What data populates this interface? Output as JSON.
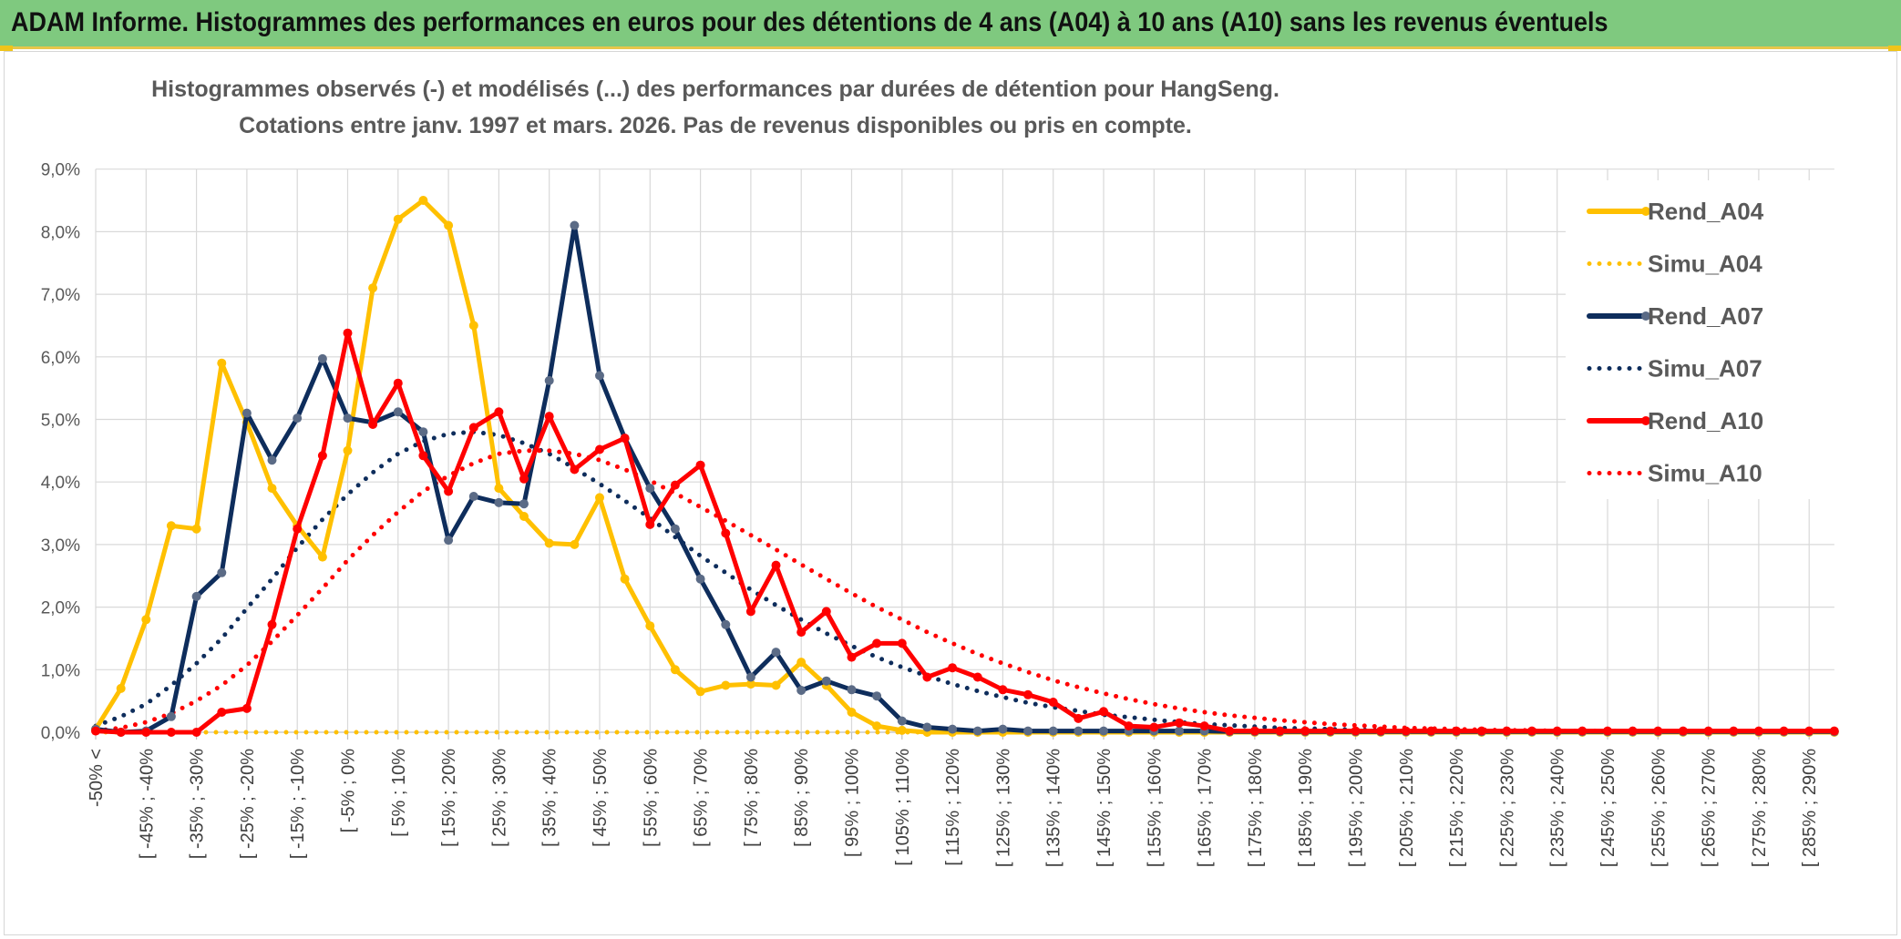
{
  "header": {
    "title": "ADAM Informe. Histogrammes des performances en euros pour des détentions de 4 ans (A04) à 10 ans (A10) sans les revenus éventuels"
  },
  "chart_data": {
    "type": "line",
    "subtitle_line1": "Histogrammes observés (-) et modélisés (...) des performances par durées de détention pour HangSeng.",
    "subtitle_line2": "Cotations entre janv. 1997 et mars. 2026. Pas de revenus disponibles ou pris en compte.",
    "yticks": [
      "0,0%",
      "1,0%",
      "2,0%",
      "3,0%",
      "4,0%",
      "5,0%",
      "6,0%",
      "7,0%",
      "8,0%",
      "9,0%"
    ],
    "ylim": [
      0,
      9
    ],
    "categories": [
      "-50% <",
      "[ -50% ; -45%",
      "[ -45% ; -40%",
      "[ -40% ; -35%",
      "[ -35% ; -30%",
      "[ -30% ; -25%",
      "[ -25% ; -20%",
      "[ -20% ; -15%",
      "[ -15% ; -10%",
      "[ -10% ; -5%",
      "[ -5% ; 0%",
      "[ 0% ; 5%",
      "[ 5% ; 10%",
      "[ 10% ; 15%",
      "[ 15% ; 20%",
      "[ 20% ; 25%",
      "[ 25% ; 30%",
      "[ 30% ; 35%",
      "[ 35% ; 40%",
      "[ 40% ; 45%",
      "[ 45% ; 50%",
      "[ 50% ; 55%",
      "[ 55% ; 60%",
      "[ 60% ; 65%",
      "[ 65% ; 70%",
      "[ 70% ; 75%",
      "[ 75% ; 80%",
      "[ 80% ; 85%",
      "[ 85% ; 90%",
      "[ 90% ; 95%",
      "[ 95% ; 100%",
      "[ 100% ; 105%",
      "[ 105% ; 110%",
      "[ 110% ; 115%",
      "[ 115% ; 120%",
      "[ 120% ; 125%",
      "[ 125% ; 130%",
      "[ 130% ; 135%",
      "[ 135% ; 140%",
      "[ 140% ; 145%",
      "[ 145% ; 150%",
      "[ 150% ; 155%",
      "[ 155% ; 160%",
      "[ 160% ; 165%",
      "[ 165% ; 170%",
      "[ 170% ; 175%",
      "[ 175% ; 180%",
      "[ 180% ; 185%",
      "[ 185% ; 190%",
      "[ 190% ; 195%",
      "[ 195% ; 200%",
      "[ 200% ; 205%",
      "[ 205% ; 210%",
      "[ 210% ; 215%",
      "[ 215% ; 220%",
      "[ 220% ; 225%",
      "[ 225% ; 230%",
      "[ 230% ; 235%",
      "[ 235% ; 240%",
      "[ 240% ; 245%",
      "[ 245% ; 250%",
      "[ 250% ; 255%",
      "[ 255% ; 260%",
      "[ 260% ; 265%",
      "[ 265% ; 270%",
      "[ 270% ; 275%",
      "[ 275% ; 280%",
      "[ 280% ; 285%",
      "[ 285% ; 290%",
      "[ 290% ; 295%"
    ],
    "visible_xlabels": [
      "-50% <",
      "[ -45% ; -40%",
      "[ -35% ; -30%",
      "[ -25% ; -20%",
      "[ -15% ; -10%",
      "[ -5% ; 0%",
      "[ 5% ; 10%",
      "[ 15% ; 20%",
      "[ 25% ; 30%",
      "[ 35% ; 40%",
      "[ 45% ; 50%",
      "[ 55% ; 60%",
      "[ 65% ; 70%",
      "[ 75% ; 80%",
      "[ 85% ; 90%",
      "[ 95% ; 100%",
      "[ 105% ; 110%",
      "[ 115% ; 120%",
      "[ 125% ; 130%",
      "[ 135% ; 140%",
      "[ 145% ; 150%",
      "[ 155% ; 160%",
      "[ 165% ; 170%",
      "[ 175% ; 180%",
      "[ 185% ; 190%",
      "[ 195% ; 200%",
      "[ 205% ; 210%",
      "[ 215% ; 220%",
      "[ 225% ; 230%",
      "[ 235% ; 240%",
      "[ 245% ; 250%",
      "[ 255% ; 260%",
      "[ 265% ; 270%",
      "[ 275% ; 280%",
      "[ 285% ; 290%"
    ],
    "series": [
      {
        "name": "Rend_A04",
        "style": "solid",
        "color": "#ffc000",
        "values": [
          0.05,
          0.7,
          1.8,
          3.3,
          3.25,
          5.9,
          4.95,
          3.9,
          3.3,
          2.8,
          4.5,
          7.1,
          8.2,
          8.5,
          8.1,
          6.5,
          3.9,
          3.45,
          3.02,
          3.0,
          3.75,
          2.45,
          1.7,
          1.0,
          0.65,
          0.75,
          0.77,
          0.75,
          1.12,
          0.75,
          0.32,
          0.1,
          0.03,
          0,
          0,
          0,
          0,
          0,
          0,
          0,
          0,
          0,
          0,
          0,
          0,
          0,
          0,
          0,
          0,
          0,
          0,
          0,
          0,
          0,
          0,
          0,
          0,
          0,
          0,
          0,
          0,
          0,
          0,
          0,
          0,
          0,
          0,
          0,
          0,
          0
        ]
      },
      {
        "name": "Simu_A04",
        "style": "dotted",
        "color": "#ffc000",
        "values": [
          0,
          0,
          0,
          0,
          0,
          0,
          0,
          0,
          0,
          0,
          0,
          0,
          0,
          0,
          0,
          0,
          0,
          0,
          0,
          0,
          0,
          0,
          0,
          0,
          0,
          0,
          0,
          0,
          0,
          0,
          0,
          0,
          0,
          0,
          0,
          0,
          0,
          0,
          0,
          0,
          0,
          0,
          0,
          0,
          0,
          0,
          0,
          0,
          0,
          0,
          0,
          0,
          0,
          0,
          0,
          0,
          0,
          0,
          0,
          0,
          0,
          0,
          0,
          0,
          0,
          0,
          0,
          0,
          0,
          0
        ]
      },
      {
        "name": "Rend_A07",
        "style": "solid",
        "color": "#0e2d5c",
        "values": [
          0.05,
          0,
          0.02,
          0.25,
          2.17,
          2.55,
          5.1,
          4.35,
          5.02,
          5.97,
          5.02,
          4.95,
          5.12,
          4.8,
          3.07,
          3.77,
          3.67,
          3.65,
          5.62,
          8.1,
          5.7,
          4.7,
          3.9,
          3.25,
          2.45,
          1.72,
          0.88,
          1.28,
          0.67,
          0.82,
          0.68,
          0.58,
          0.18,
          0.08,
          0.05,
          0.02,
          0.05,
          0.02,
          0.02,
          0.02,
          0.02,
          0.02,
          0.02,
          0.02,
          0.02,
          0.01,
          0.01,
          0.01,
          0.01,
          0.01,
          0.01,
          0.01,
          0.01,
          0.01,
          0.01,
          0.01,
          0.01,
          0.01,
          0.01,
          0.01,
          0.01,
          0.01,
          0.01,
          0.01,
          0.01,
          0.01,
          0.01,
          0.01,
          0.01,
          0.01
        ]
      },
      {
        "name": "Simu_A07",
        "style": "dotted",
        "color": "#0e2d5c",
        "values": [
          0.1,
          0.25,
          0.45,
          0.75,
          1.1,
          1.5,
          1.98,
          2.45,
          2.95,
          3.4,
          3.8,
          4.15,
          4.45,
          4.65,
          4.77,
          4.8,
          4.75,
          4.62,
          4.45,
          4.22,
          3.97,
          3.7,
          3.42,
          3.12,
          2.82,
          2.55,
          2.28,
          2.03,
          1.8,
          1.58,
          1.38,
          1.2,
          1.04,
          0.9,
          0.77,
          0.66,
          0.56,
          0.47,
          0.4,
          0.34,
          0.28,
          0.24,
          0.2,
          0.16,
          0.13,
          0.11,
          0.09,
          0.07,
          0.06,
          0.05,
          0.04,
          0.03,
          0.03,
          0.02,
          0.02,
          0.01,
          0.01,
          0.01,
          0.01,
          0.01,
          0,
          0,
          0,
          0,
          0,
          0,
          0,
          0,
          0,
          0
        ]
      },
      {
        "name": "Rend_A10",
        "style": "solid",
        "color": "#ff0000",
        "values": [
          0.02,
          0,
          0,
          0,
          0,
          0.32,
          0.38,
          1.72,
          3.25,
          4.42,
          6.38,
          4.92,
          5.58,
          4.42,
          3.85,
          4.87,
          5.12,
          4.05,
          5.05,
          4.2,
          4.52,
          4.7,
          3.32,
          3.95,
          4.27,
          3.18,
          1.93,
          2.67,
          1.6,
          1.93,
          1.2,
          1.42,
          1.42,
          0.88,
          1.03,
          0.88,
          0.68,
          0.6,
          0.48,
          0.22,
          0.33,
          0.1,
          0.08,
          0.15,
          0.1,
          0.02,
          0.02,
          0.02,
          0.02,
          0.02,
          0.02,
          0.02,
          0.02,
          0.02,
          0.02,
          0.02,
          0.02,
          0.02,
          0.02,
          0.02,
          0.02,
          0.02,
          0.02,
          0.02,
          0.02,
          0.02,
          0.02,
          0.02,
          0.02,
          0.02
        ]
      },
      {
        "name": "Simu_A10",
        "style": "dotted",
        "color": "#ff0000",
        "values": [
          0.02,
          0.07,
          0.16,
          0.3,
          0.5,
          0.75,
          1.07,
          1.45,
          1.87,
          2.3,
          2.75,
          3.15,
          3.52,
          3.85,
          4.1,
          4.3,
          4.45,
          4.5,
          4.5,
          4.45,
          4.35,
          4.2,
          4.02,
          3.82,
          3.6,
          3.38,
          3.15,
          2.92,
          2.68,
          2.45,
          2.22,
          2.0,
          1.8,
          1.6,
          1.42,
          1.25,
          1.1,
          0.96,
          0.83,
          0.72,
          0.62,
          0.53,
          0.45,
          0.38,
          0.32,
          0.27,
          0.23,
          0.19,
          0.16,
          0.13,
          0.11,
          0.09,
          0.07,
          0.06,
          0.05,
          0.04,
          0.03,
          0.03,
          0.02,
          0.02,
          0.02,
          0.01,
          0.01,
          0.01,
          0.01,
          0.01,
          0,
          0,
          0,
          0
        ]
      }
    ]
  }
}
